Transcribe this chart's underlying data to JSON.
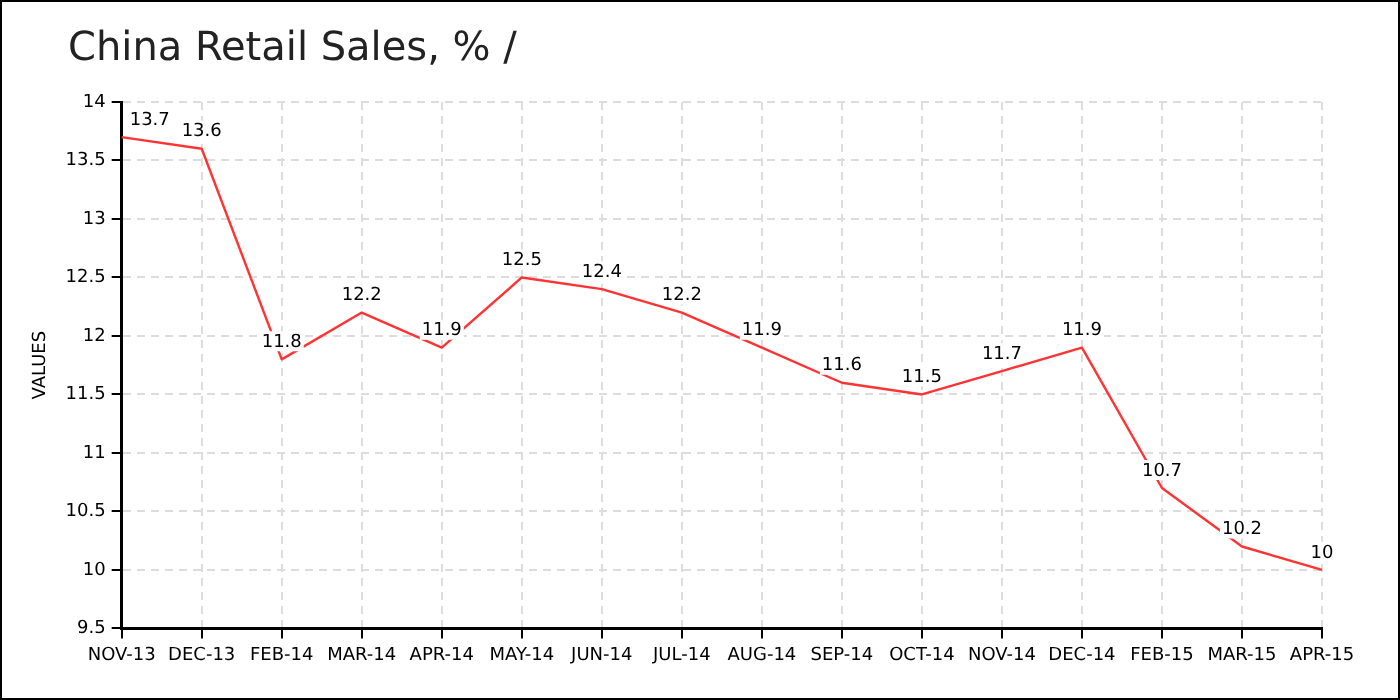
{
  "chart_data": {
    "type": "line",
    "title": "China Retail Sales, % /",
    "ylabel": "VALUES",
    "categories": [
      "NOV-13",
      "DEC-13",
      "FEB-14",
      "MAR-14",
      "APR-14",
      "MAY-14",
      "JUN-14",
      "JUL-14",
      "AUG-14",
      "SEP-14",
      "OCT-14",
      "NOV-14",
      "DEC-14",
      "FEB-15",
      "MAR-15",
      "APR-15"
    ],
    "series": [
      {
        "color": "#ff3333",
        "values": [
          13.7,
          13.6,
          11.8,
          12.2,
          11.9,
          12.5,
          12.4,
          12.2,
          11.9,
          11.6,
          11.5,
          11.7,
          11.9,
          10.7,
          10.2,
          10
        ]
      }
    ],
    "ylim": [
      9.5,
      14
    ],
    "yticks": [
      9.5,
      10,
      10.5,
      11,
      11.5,
      12,
      12.5,
      13,
      13.5,
      14
    ],
    "grid": true,
    "data_labels": true,
    "marker": "none",
    "line_style": "solid"
  }
}
